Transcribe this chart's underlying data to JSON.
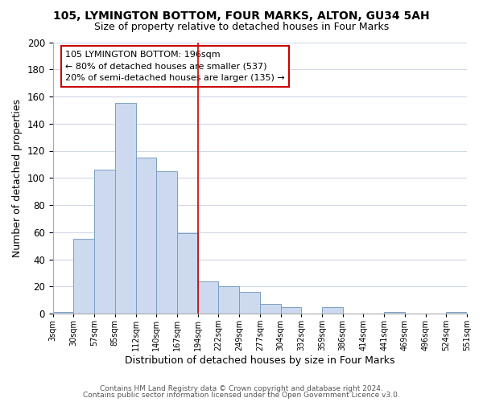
{
  "title": "105, LYMINGTON BOTTOM, FOUR MARKS, ALTON, GU34 5AH",
  "subtitle": "Size of property relative to detached houses in Four Marks",
  "xlabel": "Distribution of detached houses by size in Four Marks",
  "ylabel": "Number of detached properties",
  "bar_heights": [
    1,
    55,
    106,
    155,
    115,
    105,
    59,
    24,
    20,
    16,
    7,
    5,
    0,
    5,
    0,
    0,
    1,
    0,
    0,
    1
  ],
  "bar_color": "#ccd9ee",
  "bar_edge_color": "#7a9fc2",
  "property_line_index": 7,
  "property_line_color": "#cc0000",
  "annotation_title": "105 LYMINGTON BOTTOM: 196sqm",
  "annotation_line1": "← 80% of detached houses are smaller (537)",
  "annotation_line2": "20% of semi-detached houses are larger (135) →",
  "annotation_box_color": "#ffffff",
  "annotation_box_edge": "#cc0000",
  "ylim": [
    0,
    200
  ],
  "yticks": [
    0,
    20,
    40,
    60,
    80,
    100,
    120,
    140,
    160,
    180,
    200
  ],
  "tick_labels": [
    "3sqm",
    "30sqm",
    "57sqm",
    "85sqm",
    "112sqm",
    "140sqm",
    "167sqm",
    "194sqm",
    "222sqm",
    "249sqm",
    "277sqm",
    "304sqm",
    "332sqm",
    "359sqm",
    "386sqm",
    "414sqm",
    "441sqm",
    "469sqm",
    "496sqm",
    "524sqm",
    "551sqm"
  ],
  "footer1": "Contains HM Land Registry data © Crown copyright and database right 2024.",
  "footer2": "Contains public sector information licensed under the Open Government Licence v3.0.",
  "background_color": "#ffffff",
  "grid_color": "#d0d8e8"
}
